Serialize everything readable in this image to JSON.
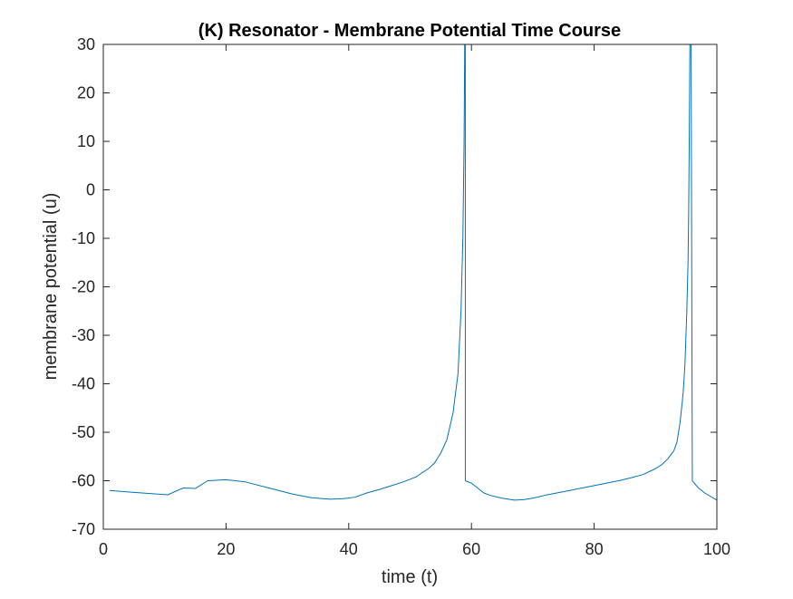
{
  "chart_data": {
    "type": "line",
    "title": "(K) Resonator - Membrane Potential Time Course",
    "xlabel": "time (t)",
    "ylabel": "membrane potential (u)",
    "xlim": [
      0,
      100
    ],
    "ylim": [
      -70,
      30
    ],
    "x_ticks": [
      0,
      20,
      40,
      60,
      80,
      100
    ],
    "y_ticks": [
      -70,
      -60,
      -50,
      -40,
      -30,
      -20,
      -10,
      0,
      10,
      20,
      30
    ],
    "grid": false,
    "legend": "none",
    "series": [
      {
        "color": "#0072BD",
        "x": [
          1,
          5,
          10.5,
          13,
          15,
          17,
          20,
          23,
          27,
          31,
          34,
          37,
          39,
          41,
          43,
          45,
          47,
          49,
          51,
          52,
          53,
          54,
          55,
          56,
          57,
          57.8,
          58.3,
          58.6,
          58.8,
          58.9,
          59,
          59,
          60,
          61,
          62,
          63,
          65,
          67,
          68.5,
          70,
          72,
          74,
          76,
          78,
          80,
          82,
          84,
          86,
          88,
          90,
          91,
          92,
          93,
          93.5,
          94,
          94.5,
          94.8,
          95.1,
          95.3,
          95.4,
          95.5,
          95.6,
          95.7,
          95.8,
          96,
          97,
          98,
          100
        ],
        "y": [
          -62,
          -62.4,
          -62.9,
          -61.5,
          -61.6,
          -60,
          -59.8,
          -60.2,
          -61.5,
          -62.8,
          -63.5,
          -63.8,
          -63.7,
          -63.4,
          -62.5,
          -61.8,
          -61,
          -60.2,
          -59.2,
          -58.3,
          -57.5,
          -56.3,
          -54.3,
          -51.5,
          -46,
          -38,
          -25,
          -10,
          10,
          30,
          30,
          -60,
          -60.5,
          -61.5,
          -62.5,
          -63,
          -63.6,
          -64,
          -63.9,
          -63.6,
          -63,
          -62.5,
          -62,
          -61.5,
          -61,
          -60.5,
          -60,
          -59.4,
          -58.7,
          -57.5,
          -56.7,
          -55.5,
          -53.8,
          -52,
          -48,
          -42,
          -36,
          -25,
          -15,
          -5,
          10,
          30,
          30,
          30,
          -60,
          -61.5,
          -62.5,
          -64
        ]
      }
    ]
  }
}
